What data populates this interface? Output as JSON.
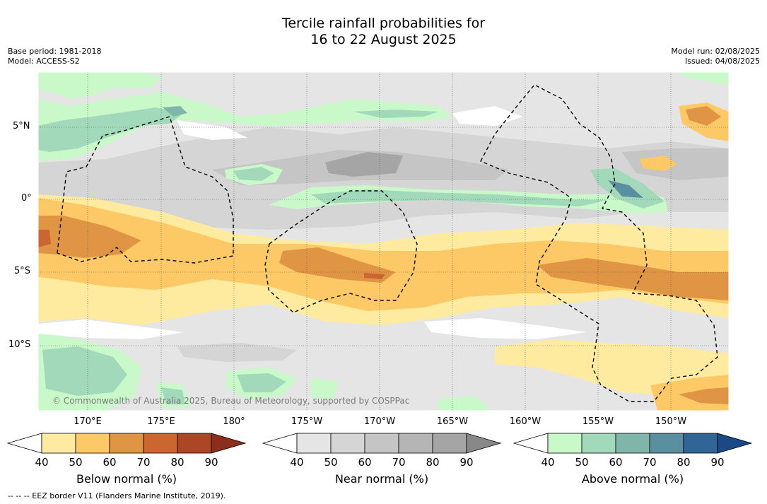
{
  "title_line1": "Tercile rainfall probabilities for",
  "title_line2": "16 to 22 August 2025",
  "meta_left": [
    "Base period: 1981-2018",
    "Model: ACCESS-S2"
  ],
  "meta_right": [
    "Model run: 02/08/2025",
    "Issued: 04/08/2025"
  ],
  "copyright": "© Commonwealth of Australia 2025, Bureau of Meteorology, supported by COSPPac",
  "footnote": "--  --  -- EEZ border V11 (Flanders Marine Institute, 2019).",
  "map": {
    "lat_labels": [
      "5°N",
      "0°",
      "5°S",
      "10°S"
    ],
    "lon_labels": [
      "170°E",
      "175°E",
      "180°",
      "175°W",
      "170°W",
      "165°W",
      "160°W",
      "155°W",
      "150°W"
    ]
  },
  "colorbars": [
    {
      "name": "below-normal",
      "title": "Below normal (%)",
      "ticks": [
        "40",
        "50",
        "60",
        "70",
        "80",
        "90"
      ],
      "colors": [
        "#ffffff",
        "#feeba0",
        "#fdc966",
        "#e09545",
        "#cc6630",
        "#ab4725",
        "#8c2e1d"
      ]
    },
    {
      "name": "near-normal",
      "title": "Near normal (%)",
      "ticks": [
        "40",
        "50",
        "60",
        "70",
        "80",
        "90"
      ],
      "colors": [
        "#ffffff",
        "#e5e5e5",
        "#d5d5d5",
        "#c5c5c5",
        "#b5b5b5",
        "#a5a5a5",
        "#888888"
      ]
    },
    {
      "name": "above-normal",
      "title": "Above normal (%)",
      "ticks": [
        "40",
        "50",
        "60",
        "70",
        "80",
        "90"
      ],
      "colors": [
        "#ffffff",
        "#c9f9c9",
        "#a3d9bb",
        "#80b5aa",
        "#5a8fa0",
        "#306595",
        "#1a4a85"
      ]
    }
  ]
}
